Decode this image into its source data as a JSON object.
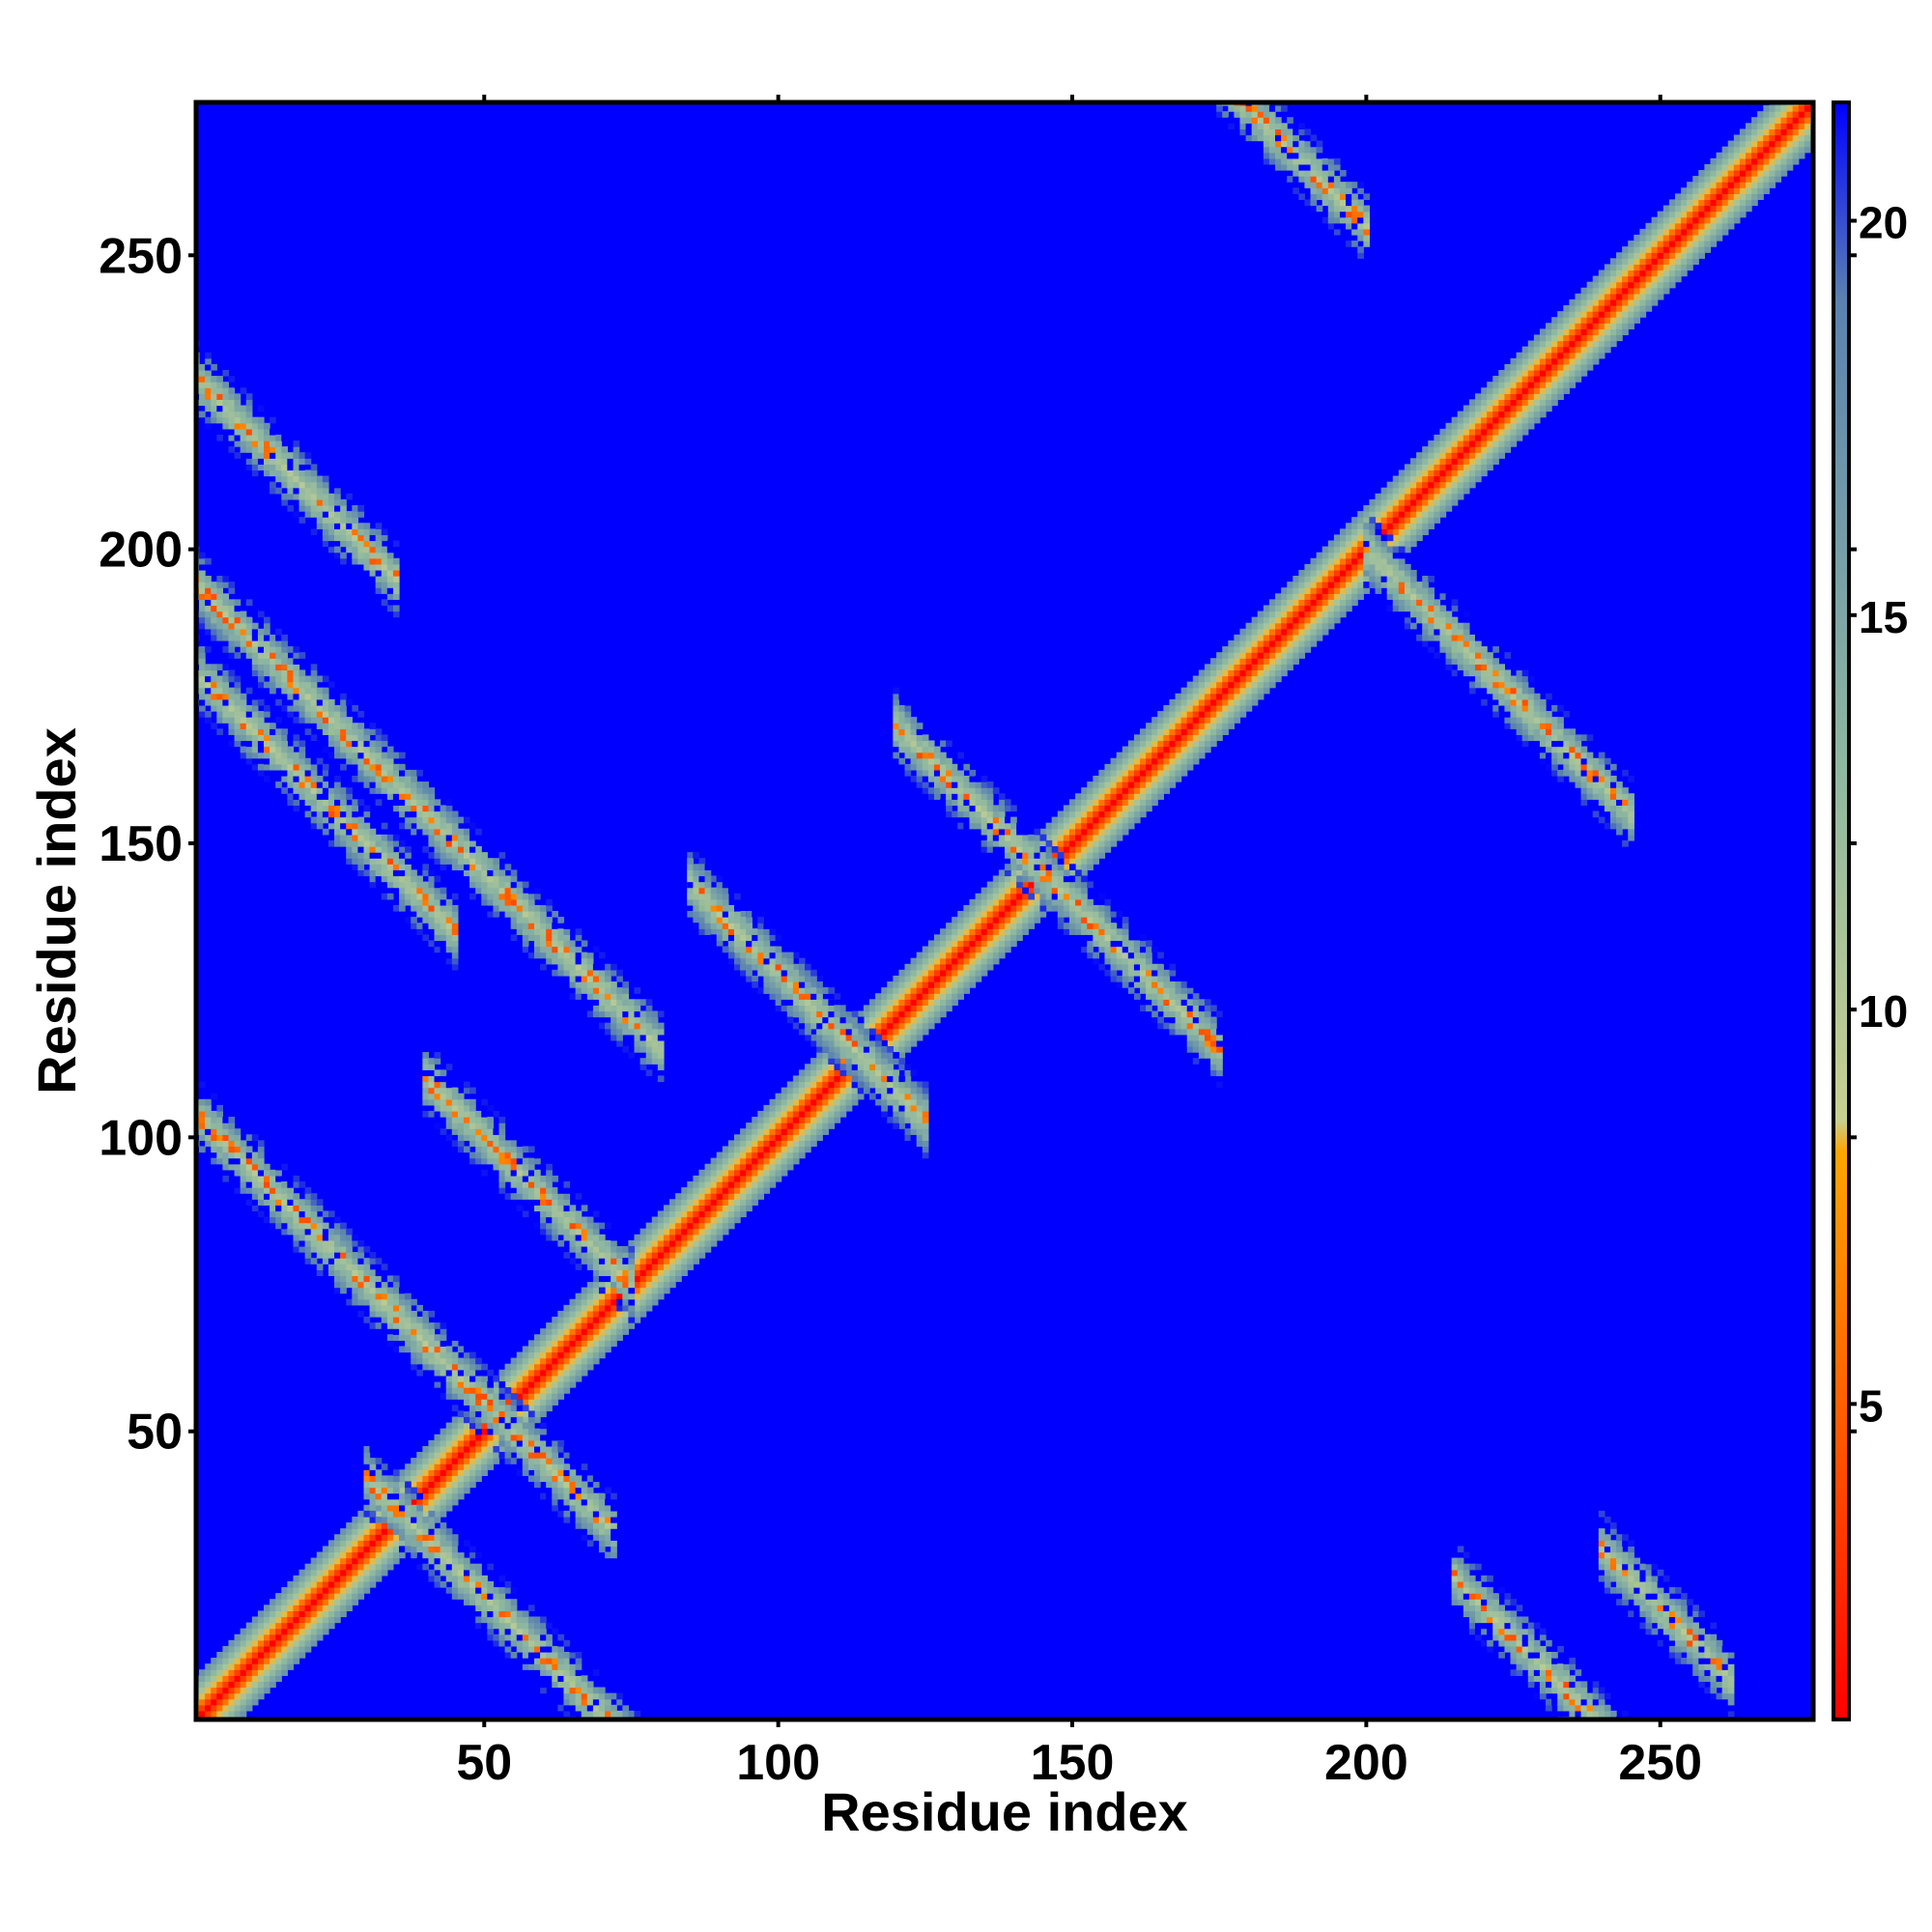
{
  "chart_data": {
    "type": "heatmap",
    "title": "",
    "xlabel": "Residue index",
    "ylabel": "Residue index",
    "xlim": [
      1,
      276
    ],
    "ylim": [
      1,
      276
    ],
    "xticks": [
      50,
      100,
      150,
      200,
      250
    ],
    "yticks": [
      50,
      100,
      150,
      200,
      250
    ],
    "colorbar": {
      "range": [
        1,
        21.5
      ],
      "ticks": [
        5,
        10,
        15,
        20
      ],
      "stops": [
        {
          "value": 1.0,
          "color": "#ff0000"
        },
        {
          "value": 4.5,
          "color": "#ff5500"
        },
        {
          "value": 8.2,
          "color": "#ffa500"
        },
        {
          "value": 8.6,
          "color": "#c8d090"
        },
        {
          "value": 13.0,
          "color": "#8fb8a0"
        },
        {
          "value": 19.0,
          "color": "#5a82b0"
        },
        {
          "value": 21.5,
          "color": "#0000ff"
        }
      ]
    },
    "background_value": 21.5,
    "grid": false,
    "description_of_values": "symmetric residue-residue distance map; diagonal band near 1-4, contact bands in 8-16 range, background saturated at max",
    "contact_bands": [
      {
        "kind": "diagonal",
        "x_start": 1,
        "x_end": 276,
        "offset": 0
      },
      {
        "kind": "anti",
        "x_range": [
          1,
          35
        ],
        "sum": 230
      },
      {
        "kind": "anti",
        "x_range": [
          1,
          80
        ],
        "sum": 195
      },
      {
        "kind": "anti",
        "x_range": [
          1,
          72
        ],
        "sum": 105
      },
      {
        "kind": "anti",
        "x_range": [
          1,
          45
        ],
        "sum": 180
      },
      {
        "kind": "anti",
        "x_range": [
          30,
          80
        ],
        "sum": 72
      },
      {
        "kind": "anti",
        "x_range": [
          40,
          75
        ],
        "sum": 150
      },
      {
        "kind": "anti",
        "x_range": [
          85,
          125
        ],
        "sum": 228
      },
      {
        "kind": "anti",
        "x_range": [
          85,
          125
        ],
        "sum": 228
      },
      {
        "kind": "anti",
        "x_range": [
          120,
          145
        ],
        "sum": 290
      },
      {
        "kind": "anti",
        "x_range": [
          145,
          175
        ],
        "sum": 290
      },
      {
        "kind": "anti",
        "x_range": [
          175,
          200
        ],
        "sum": 455
      },
      {
        "kind": "anti",
        "x_range": [
          200,
          245
        ],
        "sum": 400
      },
      {
        "kind": "anti",
        "x_range": [
          215,
          250
        ],
        "sum": 240
      },
      {
        "kind": "anti",
        "x_range": [
          240,
          262
        ],
        "sum": 270
      }
    ]
  }
}
